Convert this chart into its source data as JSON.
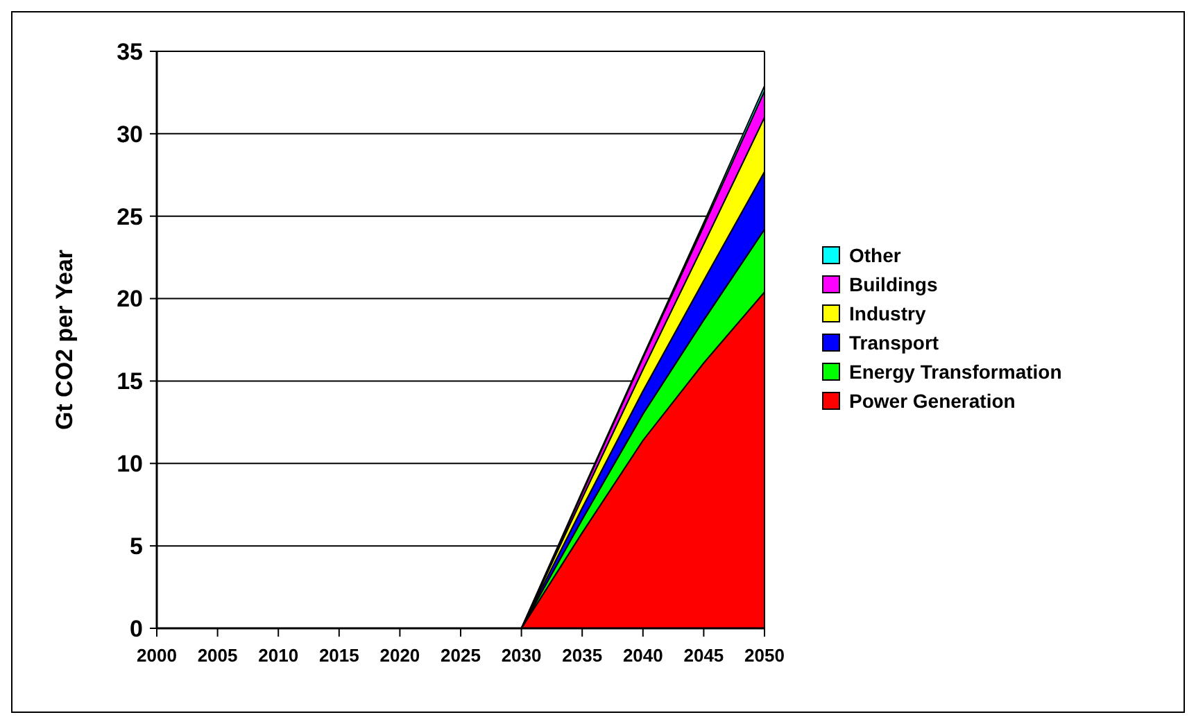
{
  "chart_data": {
    "type": "area",
    "stacked": true,
    "ylabel": "Gt CO2 per Year",
    "x": [
      2030,
      2035,
      2040,
      2045,
      2050
    ],
    "series": [
      {
        "name": "Power Generation",
        "color": "#ff0000",
        "values": [
          0,
          5.8,
          11.4,
          16.1,
          20.4
        ]
      },
      {
        "name": "Energy Transformation",
        "color": "#00ff00",
        "values": [
          0,
          0.8,
          1.6,
          2.6,
          3.8
        ]
      },
      {
        "name": "Transport",
        "color": "#0000ff",
        "values": [
          0,
          0.7,
          1.4,
          2.4,
          3.5
        ]
      },
      {
        "name": "Industry",
        "color": "#ffff00",
        "values": [
          0,
          0.6,
          1.3,
          2.2,
          3.3
        ]
      },
      {
        "name": "Buildings",
        "color": "#ff00ff",
        "values": [
          0,
          0.3,
          0.7,
          1.1,
          1.6
        ]
      },
      {
        "name": "Other",
        "color": "#00ffff",
        "values": [
          0,
          0.1,
          0.1,
          0.2,
          0.3
        ]
      }
    ],
    "xlim": [
      2000,
      2050
    ],
    "xticks": [
      2000,
      2005,
      2010,
      2015,
      2020,
      2025,
      2030,
      2035,
      2040,
      2045,
      2050
    ],
    "ylim": [
      0,
      35
    ],
    "yticks": [
      0,
      5,
      10,
      15,
      20,
      25,
      30,
      35
    ],
    "grid": "y",
    "legend": "right"
  }
}
